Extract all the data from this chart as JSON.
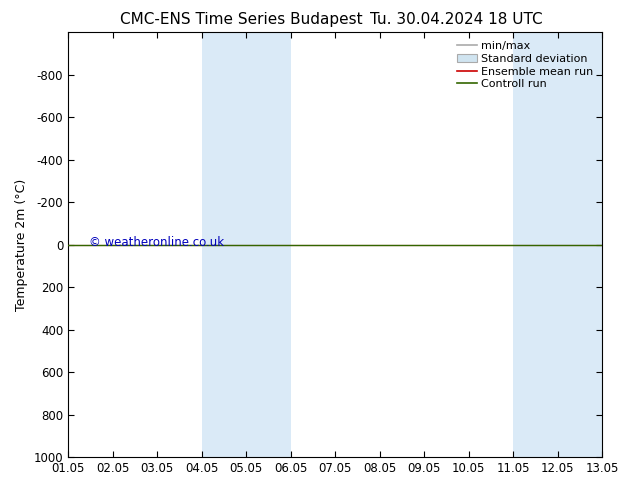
{
  "title1": "CMC-ENS Time Series Budapest",
  "title2": "Tu. 30.04.2024 18 UTC",
  "ylabel": "Temperature 2m (°C)",
  "ylim_bottom": 1000,
  "ylim_top": -1000,
  "yticks": [
    -800,
    -600,
    -400,
    -200,
    0,
    200,
    400,
    600,
    800,
    1000
  ],
  "xlim": [
    0,
    12
  ],
  "xtick_positions": [
    0,
    1,
    2,
    3,
    4,
    5,
    6,
    7,
    8,
    9,
    10,
    11,
    12
  ],
  "xtick_labels": [
    "01.05",
    "02.05",
    "03.05",
    "04.05",
    "05.05",
    "06.05",
    "07.05",
    "08.05",
    "09.05",
    "10.05",
    "11.05",
    "12.05",
    "13.05"
  ],
  "shaded_bands": [
    {
      "xstart": 3,
      "xend": 4,
      "color": "#daeaf7"
    },
    {
      "xstart": 4,
      "xend": 5,
      "color": "#daeaf7"
    },
    {
      "xstart": 10,
      "xend": 11,
      "color": "#daeaf7"
    },
    {
      "xstart": 11,
      "xend": 12,
      "color": "#daeaf7"
    }
  ],
  "control_run_y": 0,
  "ensemble_mean_y": 0,
  "background_color": "#ffffff",
  "plot_bg_color": "#ffffff",
  "legend_labels": [
    "min/max",
    "Standard deviation",
    "Ensemble mean run",
    "Controll run"
  ],
  "legend_line_colors": [
    "#aaaaaa",
    "#cccccc",
    "#cc0000",
    "#336600"
  ],
  "watermark": "© weatheronline.co.uk",
  "watermark_color": "#0000bb",
  "title_fontsize": 11,
  "tick_fontsize": 8.5,
  "ylabel_fontsize": 9,
  "legend_fontsize": 8
}
